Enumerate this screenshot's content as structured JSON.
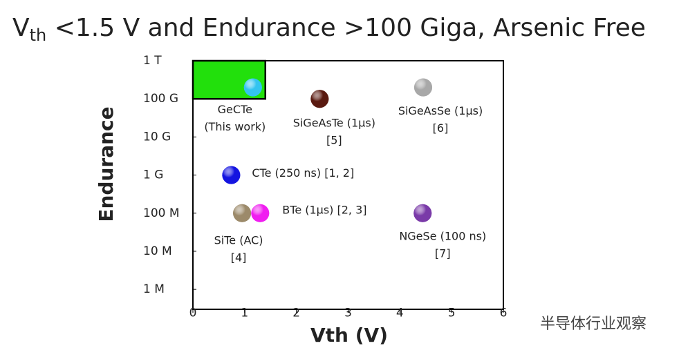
{
  "chart_data": {
    "type": "scatter",
    "title": {
      "main": "V",
      "sub": "th",
      "rest": " <1.5 V and Endurance >100 Giga, Arsenic Free"
    },
    "x_label": "Vth (V)",
    "y_label": "Endurance",
    "xlim": [
      0,
      6
    ],
    "xticks": [
      0,
      1,
      2,
      3,
      4,
      5,
      6
    ],
    "ylim": [
      300000,
      1000000000000
    ],
    "log_y": true,
    "yticks": [
      {
        "value": 1000000000000,
        "label": "1 T"
      },
      {
        "value": 100000000000,
        "label": "100 G"
      },
      {
        "value": 10000000000,
        "label": "10 G"
      },
      {
        "value": 1000000000,
        "label": "1 G"
      },
      {
        "value": 100000000,
        "label": "100 M"
      },
      {
        "value": 10000000,
        "label": "10 M"
      },
      {
        "value": 1000000,
        "label": "1 M"
      }
    ],
    "highlight": {
      "xlim": [
        0,
        1.4
      ],
      "ylim": [
        100000000000,
        1000000000000
      ],
      "color": "#22e00c"
    },
    "series": [
      {
        "label": [
          "GeCTe",
          "(This work)"
        ],
        "color": "#33c4f0",
        "x": [
          1.16
        ],
        "values": [
          200000000000
        ]
      },
      {
        "label": [
          "SiGeAsTe (1μs)",
          "[5]"
        ],
        "color": "#5a1a10",
        "x": [
          2.45
        ],
        "values": [
          100000000000
        ]
      },
      {
        "label": [
          "SiGeAsSe (1μs)",
          "[6]"
        ],
        "color": "#a8a8a8",
        "x": [
          4.45
        ],
        "values": [
          200000000000
        ]
      },
      {
        "label": [
          "CTe (250 ns) [1, 2]"
        ],
        "color": "#1414e0",
        "x": [
          0.74
        ],
        "values": [
          1000000000
        ]
      },
      {
        "label": [
          "SiTe (AC)",
          "[4]"
        ],
        "color": "#9c8a6a",
        "x": [
          0.95
        ],
        "values": [
          100000000
        ]
      },
      {
        "label": [
          "BTe (1μs) [2, 3]"
        ],
        "color": "#f01ef0",
        "x": [
          1.3
        ],
        "values": [
          100000000
        ]
      },
      {
        "label": [
          "NGeSe (100 ns)",
          "[7]"
        ],
        "color": "#7a3aa8",
        "x": [
          4.44
        ],
        "values": [
          100000000
        ]
      }
    ],
    "watermark": "半导体行业观察"
  }
}
